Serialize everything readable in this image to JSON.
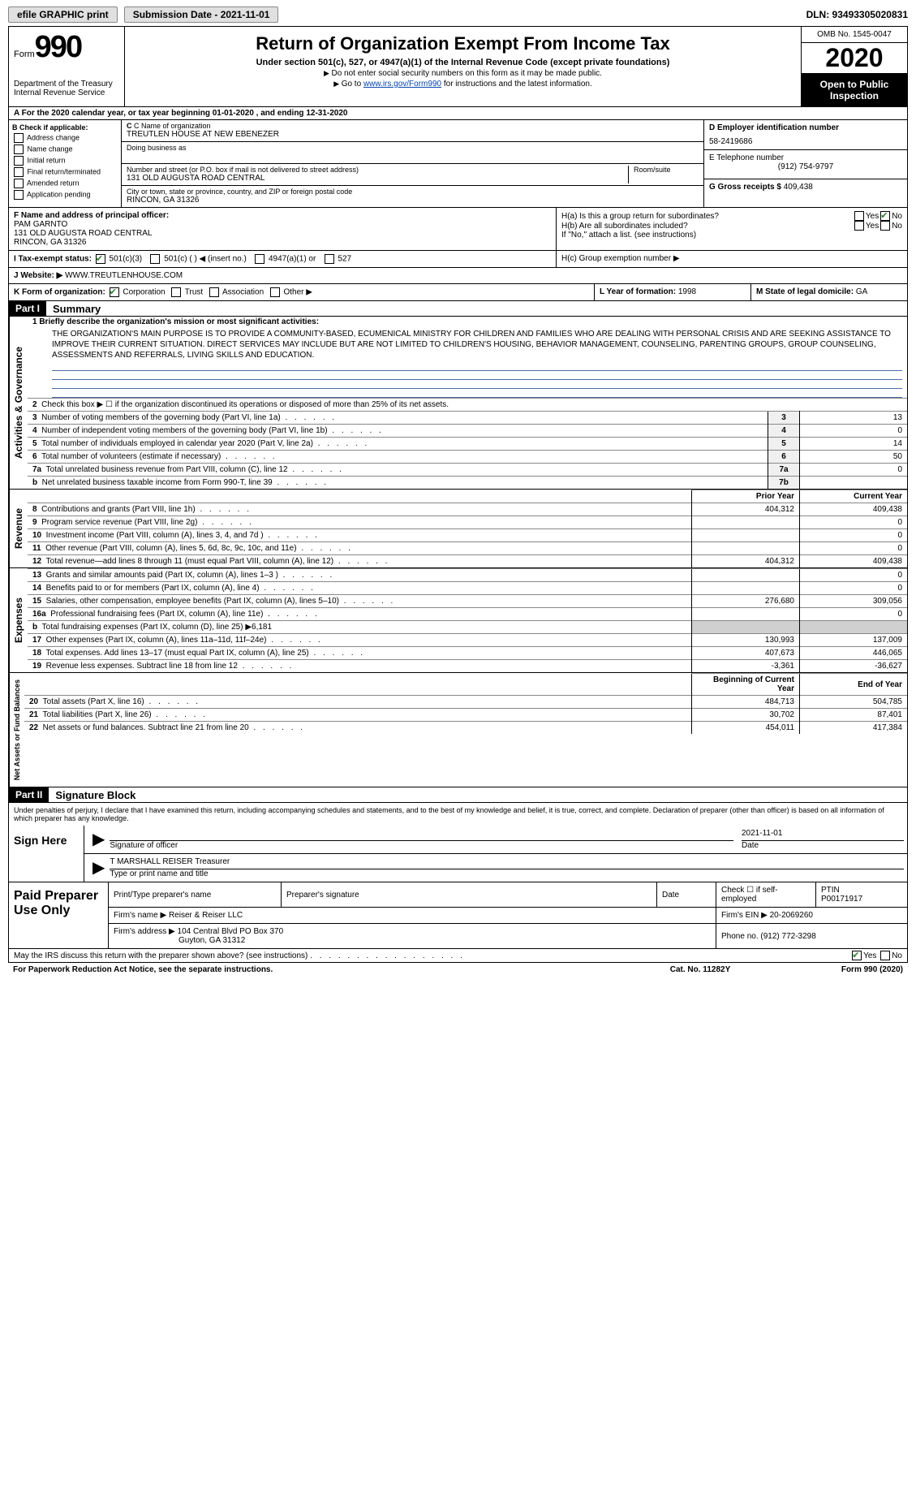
{
  "topbar": {
    "efile_label": "efile GRAPHIC print",
    "submission_label": "Submission Date - 2021-11-01",
    "dln_label": "DLN: 93493305020831"
  },
  "header": {
    "form_word": "Form",
    "form_number": "990",
    "dept": "Department of the Treasury",
    "irs": "Internal Revenue Service",
    "title": "Return of Organization Exempt From Income Tax",
    "subtitle": "Under section 501(c), 527, or 4947(a)(1) of the Internal Revenue Code (except private foundations)",
    "instr1": "Do not enter social security numbers on this form as it may be made public.",
    "instr2_pre": "Go to ",
    "instr2_link": "www.irs.gov/Form990",
    "instr2_post": " for instructions and the latest information.",
    "omb": "OMB No. 1545-0047",
    "year": "2020",
    "inspect": "Open to Public Inspection"
  },
  "rowA": "A For the 2020 calendar year, or tax year beginning 01-01-2020    , and ending 12-31-2020",
  "colB": {
    "label": "B Check if applicable:",
    "items": [
      "Address change",
      "Name change",
      "Initial return",
      "Final return/terminated",
      "Amended return",
      "Application pending"
    ]
  },
  "colC": {
    "name_label": "C Name of organization",
    "name": "TREUTLEN HOUSE AT NEW EBENEZER",
    "dba_label": "Doing business as",
    "dba": "",
    "street_label": "Number and street (or P.O. box if mail is not delivered to street address)",
    "street": "131 OLD AUGUSTA ROAD CENTRAL",
    "room_label": "Room/suite",
    "room": "",
    "city_label": "City or town, state or province, country, and ZIP or foreign postal code",
    "city": "RINCON, GA  31326"
  },
  "colD": {
    "ein_label": "D Employer identification number",
    "ein": "58-2419686",
    "phone_label": "E Telephone number",
    "phone": "(912) 754-9797",
    "gross_label": "G Gross receipts $",
    "gross": "409,438"
  },
  "rowF": {
    "label": "F  Name and address of principal officer:",
    "name": "PAM GARNTO",
    "street": "131 OLD AUGUSTA ROAD CENTRAL",
    "city": "RINCON, GA  31326"
  },
  "rowH": {
    "a": "H(a)  Is this a group return for subordinates?",
    "b": "H(b)  Are all subordinates included?",
    "b_note": "If \"No,\" attach a list. (see instructions)",
    "c": "H(c)  Group exemption number ▶",
    "yes": "Yes",
    "no": "No"
  },
  "rowI": {
    "label": "I   Tax-exempt status:",
    "opts": [
      "501(c)(3)",
      "501(c) (  ) ◀ (insert no.)",
      "4947(a)(1) or",
      "527"
    ]
  },
  "rowJ": {
    "label": "J   Website: ▶",
    "val": "WWW.TREUTLENHOUSE.COM"
  },
  "rowK": {
    "label": "K Form of organization:",
    "opts": [
      "Corporation",
      "Trust",
      "Association",
      "Other ▶"
    ]
  },
  "rowL": {
    "label": "L Year of formation:",
    "val": "1998"
  },
  "rowM": {
    "label": "M State of legal domicile:",
    "val": "GA"
  },
  "part1": {
    "label": "Part I",
    "title": "Summary",
    "side_gov": "Activities & Governance",
    "side_rev": "Revenue",
    "side_exp": "Expenses",
    "side_net": "Net Assets or Fund Balances",
    "line1_label": "1   Briefly describe the organization's mission or most significant activities:",
    "mission": "THE ORGANIZATION'S MAIN PURPOSE IS TO PROVIDE A COMMUNITY-BASED, ECUMENICAL MINISTRY FOR CHILDREN AND FAMILIES WHO ARE DEALING WITH PERSONAL CRISIS AND ARE SEEKING ASSISTANCE TO IMPROVE THEIR CURRENT SITUATION. DIRECT SERVICES MAY INCLUDE BUT ARE NOT LIMITED TO CHILDREN'S HOUSING, BEHAVIOR MANAGEMENT, COUNSELING, PARENTING GROUPS, GROUP COUNSELING, ASSESSMENTS AND REFERRALS, LIVING SKILLS AND EDUCATION.",
    "lines_gov": [
      {
        "n": "2",
        "txt": "Check this box ▶ ☐  if the organization discontinued its operations or disposed of more than 25% of its net assets."
      },
      {
        "n": "3",
        "txt": "Number of voting members of the governing body (Part VI, line 1a)",
        "box": "3",
        "val": "13"
      },
      {
        "n": "4",
        "txt": "Number of independent voting members of the governing body (Part VI, line 1b)",
        "box": "4",
        "val": "0"
      },
      {
        "n": "5",
        "txt": "Total number of individuals employed in calendar year 2020 (Part V, line 2a)",
        "box": "5",
        "val": "14"
      },
      {
        "n": "6",
        "txt": "Total number of volunteers (estimate if necessary)",
        "box": "6",
        "val": "50"
      },
      {
        "n": "7a",
        "txt": "Total unrelated business revenue from Part VIII, column (C), line 12",
        "box": "7a",
        "val": "0"
      },
      {
        "n": "b",
        "txt": "Net unrelated business taxable income from Form 990-T, line 39",
        "box": "7b",
        "val": ""
      }
    ],
    "prior_label": "Prior Year",
    "current_label": "Current Year",
    "lines_rev": [
      {
        "n": "8",
        "txt": "Contributions and grants (Part VIII, line 1h)",
        "p": "404,312",
        "c": "409,438"
      },
      {
        "n": "9",
        "txt": "Program service revenue (Part VIII, line 2g)",
        "p": "",
        "c": "0"
      },
      {
        "n": "10",
        "txt": "Investment income (Part VIII, column (A), lines 3, 4, and 7d )",
        "p": "",
        "c": "0"
      },
      {
        "n": "11",
        "txt": "Other revenue (Part VIII, column (A), lines 5, 6d, 8c, 9c, 10c, and 11e)",
        "p": "",
        "c": "0"
      },
      {
        "n": "12",
        "txt": "Total revenue—add lines 8 through 11 (must equal Part VIII, column (A), line 12)",
        "p": "404,312",
        "c": "409,438"
      }
    ],
    "lines_exp": [
      {
        "n": "13",
        "txt": "Grants and similar amounts paid (Part IX, column (A), lines 1–3 )",
        "p": "",
        "c": "0"
      },
      {
        "n": "14",
        "txt": "Benefits paid to or for members (Part IX, column (A), line 4)",
        "p": "",
        "c": "0"
      },
      {
        "n": "15",
        "txt": "Salaries, other compensation, employee benefits (Part IX, column (A), lines 5–10)",
        "p": "276,680",
        "c": "309,056"
      },
      {
        "n": "16a",
        "txt": "Professional fundraising fees (Part IX, column (A), line 11e)",
        "p": "",
        "c": "0"
      },
      {
        "n": "b",
        "txt": "Total fundraising expenses (Part IX, column (D), line 25) ▶6,181",
        "nobox": true
      },
      {
        "n": "17",
        "txt": "Other expenses (Part IX, column (A), lines 11a–11d, 11f–24e)",
        "p": "130,993",
        "c": "137,009"
      },
      {
        "n": "18",
        "txt": "Total expenses. Add lines 13–17 (must equal Part IX, column (A), line 25)",
        "p": "407,673",
        "c": "446,065"
      },
      {
        "n": "19",
        "txt": "Revenue less expenses. Subtract line 18 from line 12",
        "p": "-3,361",
        "c": "-36,627"
      }
    ],
    "beg_label": "Beginning of Current Year",
    "end_label": "End of Year",
    "lines_net": [
      {
        "n": "20",
        "txt": "Total assets (Part X, line 16)",
        "p": "484,713",
        "c": "504,785"
      },
      {
        "n": "21",
        "txt": "Total liabilities (Part X, line 26)",
        "p": "30,702",
        "c": "87,401"
      },
      {
        "n": "22",
        "txt": "Net assets or fund balances. Subtract line 21 from line 20",
        "p": "454,011",
        "c": "417,384"
      }
    ]
  },
  "part2": {
    "label": "Part II",
    "title": "Signature Block",
    "declaration": "Under penalties of perjury, I declare that I have examined this return, including accompanying schedules and statements, and to the best of my knowledge and belief, it is true, correct, and complete. Declaration of preparer (other than officer) is based on all information of which preparer has any knowledge.",
    "sign_here": "Sign Here",
    "sig_officer_label": "Signature of officer",
    "sig_date": "2021-11-01",
    "date_label": "Date",
    "officer_name": "T MARSHALL REISER  Treasurer",
    "officer_label": "Type or print name and title",
    "paid_label": "Paid Preparer Use Only",
    "prep_name_label": "Print/Type preparer's name",
    "prep_sig_label": "Preparer's signature",
    "prep_date_label": "Date",
    "self_emp": "Check ☐ if self-employed",
    "ptin_label": "PTIN",
    "ptin": "P00171917",
    "firm_name_label": "Firm's name    ▶",
    "firm_name": "Reiser & Reiser LLC",
    "firm_ein_label": "Firm's EIN ▶",
    "firm_ein": "20-2069260",
    "firm_addr_label": "Firm's address ▶",
    "firm_addr1": "104 Central Blvd PO Box 370",
    "firm_addr2": "Guyton, GA  31312",
    "phone_label": "Phone no.",
    "phone": "(912) 772-3298",
    "discuss": "May the IRS discuss this return with the preparer shown above? (see instructions)"
  },
  "footer": {
    "paperwork": "For Paperwork Reduction Act Notice, see the separate instructions.",
    "cat": "Cat. No. 11282Y",
    "form": "Form 990 (2020)"
  }
}
